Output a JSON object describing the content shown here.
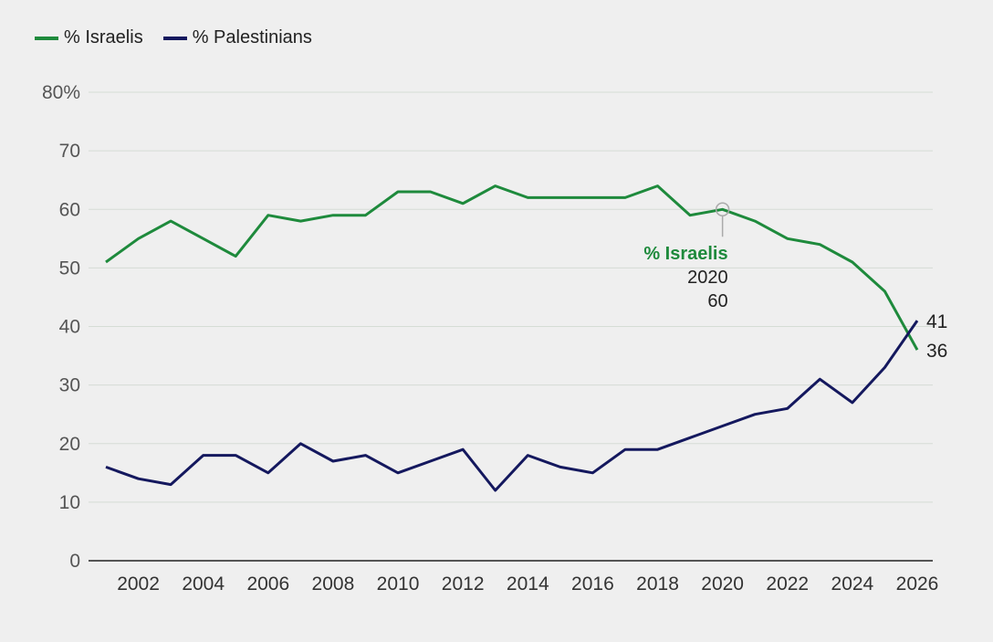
{
  "chart_data": {
    "type": "line",
    "title": "",
    "xlabel": "",
    "ylabel": "",
    "ylim": [
      0,
      80
    ],
    "xlim": [
      2001,
      2026
    ],
    "y_ticks": [
      0,
      10,
      20,
      30,
      40,
      50,
      60,
      70,
      80
    ],
    "y_tick_labels": [
      "0",
      "10",
      "20",
      "30",
      "40",
      "50",
      "60",
      "70",
      "80%"
    ],
    "x_ticks": [
      2002,
      2004,
      2006,
      2008,
      2010,
      2012,
      2014,
      2016,
      2018,
      2020,
      2022,
      2024,
      2026
    ],
    "x_tick_labels": [
      "2002",
      "2004",
      "2006",
      "2008",
      "2010",
      "2012",
      "2014",
      "2016",
      "2018",
      "2020",
      "2022",
      "2024",
      "2026"
    ],
    "grid": true,
    "legend": "top-left",
    "series": [
      {
        "name": "% Israelis",
        "color": "#1e8a3c",
        "x": [
          2001,
          2002,
          2003,
          2004,
          2005,
          2006,
          2007,
          2008,
          2009,
          2010,
          2011,
          2012,
          2013,
          2014,
          2015,
          2016,
          2017,
          2018,
          2019,
          2020,
          2021,
          2022,
          2023,
          2024,
          2025,
          2026
        ],
        "values": [
          51,
          55,
          58,
          55,
          52,
          59,
          58,
          59,
          59,
          63,
          63,
          61,
          64,
          62,
          62,
          62,
          62,
          64,
          59,
          60,
          58,
          55,
          54,
          51,
          46,
          36
        ],
        "end_label": "36"
      },
      {
        "name": "% Palestinians",
        "color": "#14185e",
        "x": [
          2001,
          2002,
          2003,
          2004,
          2005,
          2006,
          2007,
          2008,
          2009,
          2010,
          2011,
          2012,
          2013,
          2014,
          2015,
          2016,
          2017,
          2018,
          2019,
          2020,
          2021,
          2022,
          2023,
          2024,
          2025,
          2026
        ],
        "values": [
          16,
          14,
          13,
          18,
          18,
          15,
          20,
          17,
          18,
          15,
          17,
          19,
          12,
          18,
          16,
          15,
          19,
          19,
          21,
          23,
          25,
          26,
          31,
          27,
          33,
          41
        ],
        "end_label": "41"
      }
    ],
    "annotation": {
      "series": "% Israelis",
      "title": "% Israelis",
      "x_label": "2020",
      "value_label": "60",
      "x": 2020,
      "y": 60
    }
  }
}
